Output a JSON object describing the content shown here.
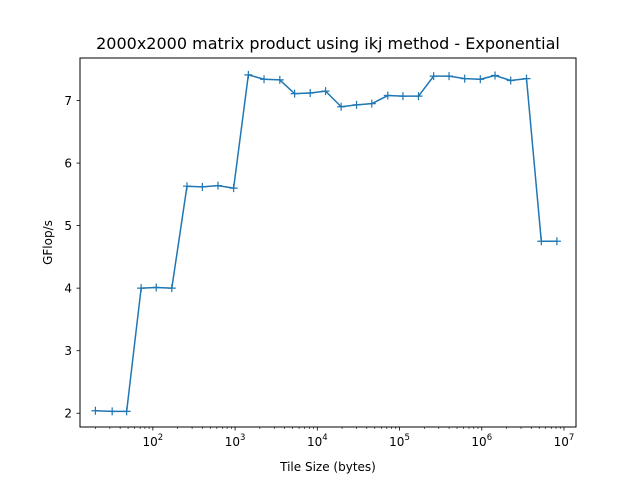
{
  "chart_data": {
    "type": "line",
    "title": "2000x2000 matrix product using ikj method - Exponential",
    "xlabel": "Tile Size (bytes)",
    "ylabel": "GFlop/s",
    "x_scale": "log",
    "xlim": [
      13,
      14000000
    ],
    "ylim": [
      1.78,
      7.68
    ],
    "x_ticks_major": [
      100,
      1000,
      10000,
      100000,
      1000000,
      10000000
    ],
    "x_tick_labels": [
      {
        "base": "10",
        "exp": "2"
      },
      {
        "base": "10",
        "exp": "3"
      },
      {
        "base": "10",
        "exp": "4"
      },
      {
        "base": "10",
        "exp": "5"
      },
      {
        "base": "10",
        "exp": "6"
      },
      {
        "base": "10",
        "exp": "7"
      }
    ],
    "y_ticks": [
      2,
      3,
      4,
      5,
      6,
      7
    ],
    "y_tick_labels": [
      "2",
      "3",
      "4",
      "5",
      "6",
      "7"
    ],
    "grid": false,
    "marker": "+",
    "line_color": "#1f77b4",
    "series": [
      {
        "x": [
          20,
          32,
          48,
          72,
          110,
          170,
          260,
          400,
          620,
          960,
          1450,
          2250,
          3500,
          5300,
          8200,
          12600,
          19500,
          30000,
          46000,
          72000,
          110000,
          170000,
          260000,
          400000,
          620000,
          960000,
          1450000,
          2250000,
          3500000,
          5300000,
          8200000
        ],
        "y": [
          2.04,
          2.03,
          2.03,
          4.0,
          4.01,
          4.0,
          5.63,
          5.62,
          5.64,
          5.6,
          7.41,
          7.34,
          7.33,
          7.11,
          7.12,
          7.15,
          6.9,
          6.93,
          6.95,
          7.08,
          7.07,
          7.07,
          7.39,
          7.39,
          7.35,
          7.34,
          7.4,
          7.32,
          7.35,
          4.75,
          4.75
        ]
      }
    ]
  }
}
